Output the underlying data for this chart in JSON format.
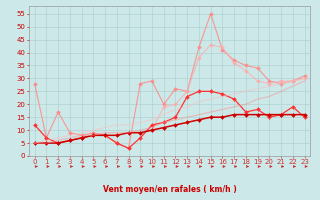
{
  "background_color": "#cce8e8",
  "grid_color": "#aacece",
  "x_labels": [
    "0",
    "1",
    "2",
    "3",
    "4",
    "5",
    "6",
    "7",
    "8",
    "9",
    "10",
    "11",
    "12",
    "13",
    "14",
    "15",
    "16",
    "17",
    "18",
    "19",
    "20",
    "21",
    "22",
    "23"
  ],
  "xlabel": "Vent moyen/en rafales ( km/h )",
  "xlabel_color": "#cc0000",
  "ylabel_color": "#cc0000",
  "yticks": [
    0,
    5,
    10,
    15,
    20,
    25,
    30,
    35,
    40,
    45,
    50,
    55
  ],
  "ylim": [
    0,
    58
  ],
  "xlim": [
    -0.5,
    23.5
  ],
  "series": [
    {
      "color": "#ff8888",
      "alpha": 0.85,
      "linewidth": 0.8,
      "markersize": 2.0,
      "marker": "D",
      "data": [
        28,
        7,
        17,
        9,
        8,
        9,
        8,
        5,
        3,
        28,
        29,
        20,
        26,
        25,
        42,
        55,
        41,
        37,
        35,
        34,
        29,
        28,
        29,
        31
      ]
    },
    {
      "color": "#ffaaaa",
      "alpha": 0.75,
      "linewidth": 0.8,
      "markersize": 2.0,
      "marker": "D",
      "data": [
        null,
        null,
        null,
        null,
        null,
        null,
        null,
        null,
        null,
        null,
        10,
        19,
        20,
        25,
        38,
        43,
        42,
        36,
        33,
        29,
        28,
        29,
        29,
        30
      ]
    },
    {
      "color": "#ff3333",
      "alpha": 1.0,
      "linewidth": 0.9,
      "markersize": 2.0,
      "marker": "D",
      "data": [
        12,
        7,
        5,
        6,
        7,
        8,
        8,
        5,
        3,
        7,
        12,
        13,
        15,
        23,
        25,
        25,
        24,
        22,
        17,
        18,
        15,
        16,
        19,
        15
      ]
    },
    {
      "color": "#cc0000",
      "alpha": 1.0,
      "linewidth": 1.1,
      "markersize": 2.0,
      "marker": "D",
      "data": [
        5,
        5,
        5,
        6,
        7,
        8,
        8,
        8,
        9,
        9,
        10,
        11,
        12,
        13,
        14,
        15,
        15,
        16,
        16,
        16,
        16,
        16,
        16,
        16
      ]
    },
    {
      "color": "#ff8888",
      "alpha": 0.5,
      "linewidth": 0.8,
      "markersize": 0,
      "marker": null,
      "data": [
        5,
        5,
        6,
        7,
        8,
        8,
        9,
        9,
        9,
        10,
        11,
        13,
        14,
        15,
        16,
        17,
        18,
        19,
        20,
        22,
        23,
        25,
        27,
        29
      ]
    },
    {
      "color": "#ffbbbb",
      "alpha": 0.5,
      "linewidth": 0.8,
      "markersize": 0,
      "marker": null,
      "data": [
        5,
        6,
        7,
        8,
        9,
        10,
        11,
        12,
        12,
        13,
        14,
        16,
        18,
        19,
        21,
        22,
        23,
        24,
        25,
        26,
        27,
        28,
        29,
        30
      ]
    }
  ],
  "arrow_color": "#cc3333",
  "tick_fontsize": 5.0,
  "xlabel_fontsize": 5.5
}
